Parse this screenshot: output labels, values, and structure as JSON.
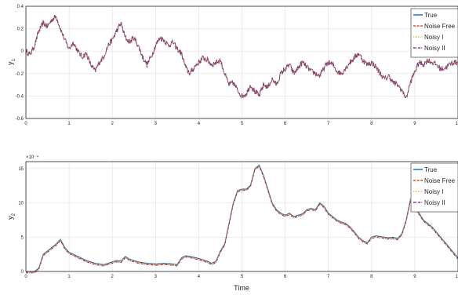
{
  "chart_data": [
    {
      "type": "line",
      "title": "",
      "ylabel": "y",
      "ylabel_sub": "1",
      "xlabel": "",
      "xlim": [
        0,
        10
      ],
      "ylim": [
        -0.6,
        0.4
      ],
      "xticks": [
        0,
        1,
        2,
        3,
        4,
        5,
        6,
        7,
        8,
        9,
        10
      ],
      "yticks": [
        -0.6,
        -0.4,
        -0.2,
        0,
        0.2,
        0.4
      ],
      "ytick_labels": [
        "-0.6",
        "-0.4",
        "-0.2",
        "0",
        "0.2",
        "0.4"
      ],
      "grid": true,
      "legend_position": "top-right",
      "noise": 0.025,
      "series": [
        {
          "name": "True",
          "color": "#0072BD",
          "style": "solid"
        },
        {
          "name": "Noise Free",
          "color": "#D95319",
          "style": "dashed"
        },
        {
          "name": "Noisy I",
          "color": "#EDB120",
          "style": "dotted"
        },
        {
          "name": "Noisy II",
          "color": "#7E2F8E",
          "style": "dashdot"
        }
      ],
      "x": [
        0,
        0.1,
        0.2,
        0.3,
        0.4,
        0.5,
        0.6,
        0.7,
        0.8,
        0.9,
        1.0,
        1.1,
        1.2,
        1.3,
        1.4,
        1.5,
        1.6,
        1.7,
        1.8,
        1.9,
        2.0,
        2.1,
        2.2,
        2.3,
        2.4,
        2.5,
        2.6,
        2.7,
        2.8,
        2.9,
        3.0,
        3.1,
        3.2,
        3.3,
        3.4,
        3.5,
        3.6,
        3.7,
        3.8,
        3.9,
        4.0,
        4.1,
        4.2,
        4.3,
        4.4,
        4.5,
        4.6,
        4.7,
        4.8,
        4.9,
        5.0,
        5.1,
        5.2,
        5.3,
        5.4,
        5.5,
        5.6,
        5.7,
        5.8,
        5.9,
        6.0,
        6.1,
        6.2,
        6.3,
        6.4,
        6.5,
        6.6,
        6.7,
        6.8,
        6.9,
        7.0,
        7.1,
        7.2,
        7.3,
        7.4,
        7.5,
        7.6,
        7.7,
        7.8,
        7.9,
        8.0,
        8.1,
        8.2,
        8.3,
        8.4,
        8.5,
        8.6,
        8.7,
        8.8,
        8.9,
        9.0,
        9.1,
        9.2,
        9.3,
        9.4,
        9.5,
        9.6,
        9.7,
        9.8,
        9.9,
        10.0
      ],
      "y": [
        0.0,
        -0.03,
        0.05,
        0.18,
        0.25,
        0.22,
        0.28,
        0.31,
        0.2,
        0.1,
        0.02,
        0.08,
        0.0,
        -0.05,
        -0.02,
        -0.12,
        -0.18,
        -0.1,
        -0.05,
        0.05,
        0.1,
        0.18,
        0.25,
        0.12,
        0.08,
        0.12,
        0.05,
        -0.05,
        -0.12,
        -0.05,
        0.05,
        0.12,
        0.1,
        0.05,
        0.08,
        0.02,
        -0.02,
        -0.15,
        -0.2,
        -0.14,
        -0.1,
        -0.06,
        -0.08,
        -0.12,
        -0.1,
        -0.08,
        -0.2,
        -0.3,
        -0.28,
        -0.35,
        -0.4,
        -0.38,
        -0.3,
        -0.36,
        -0.4,
        -0.3,
        -0.32,
        -0.25,
        -0.3,
        -0.2,
        -0.16,
        -0.12,
        -0.2,
        -0.15,
        -0.1,
        -0.14,
        -0.18,
        -0.2,
        -0.22,
        -0.15,
        -0.1,
        -0.12,
        -0.18,
        -0.2,
        -0.15,
        -0.1,
        -0.06,
        -0.02,
        -0.08,
        -0.12,
        -0.1,
        -0.14,
        -0.2,
        -0.25,
        -0.22,
        -0.28,
        -0.3,
        -0.35,
        -0.42,
        -0.28,
        -0.18,
        -0.1,
        -0.12,
        -0.08,
        -0.1,
        -0.12,
        -0.16,
        -0.15,
        -0.12,
        -0.1,
        -0.1
      ]
    },
    {
      "type": "line",
      "title": "",
      "ylabel": "y",
      "ylabel_sub": "2",
      "xlabel": "Time",
      "xlim": [
        0,
        10
      ],
      "ylim": [
        0,
        0.0016
      ],
      "scale_exponent": "×10⁻⁴",
      "xticks": [
        0,
        1,
        2,
        3,
        4,
        5,
        6,
        7,
        8,
        9,
        10
      ],
      "yticks": [
        0,
        0.0005,
        0.001,
        0.0015
      ],
      "ytick_labels": [
        "0",
        "5",
        "10",
        "15"
      ],
      "grid": true,
      "legend_position": "top-right",
      "noise": 0,
      "series": [
        {
          "name": "True",
          "color": "#0072BD",
          "style": "solid"
        },
        {
          "name": "Noise Free",
          "color": "#D95319",
          "style": "dashed"
        },
        {
          "name": "Noisy I",
          "color": "#EDB120",
          "style": "dotted"
        },
        {
          "name": "Noisy II",
          "color": "#7E2F8E",
          "style": "dashdot"
        }
      ],
      "x": [
        0,
        0.2,
        0.3,
        0.4,
        0.5,
        0.6,
        0.7,
        0.8,
        0.9,
        1.0,
        1.2,
        1.4,
        1.6,
        1.8,
        2.0,
        2.1,
        2.2,
        2.3,
        2.4,
        2.6,
        2.8,
        3.0,
        3.2,
        3.4,
        3.5,
        3.6,
        3.7,
        3.8,
        4.0,
        4.2,
        4.3,
        4.4,
        4.5,
        4.6,
        4.7,
        4.8,
        4.9,
        5.0,
        5.1,
        5.2,
        5.3,
        5.4,
        5.5,
        5.6,
        5.7,
        5.8,
        5.9,
        6.0,
        6.1,
        6.2,
        6.3,
        6.4,
        6.5,
        6.6,
        6.7,
        6.8,
        6.9,
        7.0,
        7.1,
        7.2,
        7.3,
        7.4,
        7.5,
        7.6,
        7.7,
        7.8,
        7.9,
        8.0,
        8.1,
        8.2,
        8.3,
        8.4,
        8.5,
        8.6,
        8.7,
        8.8,
        8.9,
        9.0,
        9.2,
        9.4,
        9.6,
        9.8,
        10.0
      ],
      "y": [
        0,
        0,
        5e-05,
        0.00025,
        0.0003,
        0.00035,
        0.0004,
        0.00047,
        0.00035,
        0.00028,
        0.00022,
        0.00016,
        0.00012,
        0.0001,
        0.00014,
        0.00016,
        0.00015,
        0.00022,
        0.00018,
        0.00014,
        0.00012,
        0.00011,
        0.00012,
        0.00011,
        0.0001,
        0.0002,
        0.00023,
        0.00022,
        0.00019,
        0.00015,
        0.00012,
        0.00015,
        0.0003,
        0.0004,
        0.0007,
        0.001,
        0.00118,
        0.0012,
        0.0012,
        0.00126,
        0.0015,
        0.00155,
        0.0014,
        0.0012,
        0.001,
        0.0009,
        0.00085,
        0.00082,
        0.00085,
        0.0008,
        0.00082,
        0.00084,
        0.0009,
        0.00092,
        0.0009,
        0.001,
        0.00095,
        0.00085,
        0.0008,
        0.00075,
        0.00072,
        0.0007,
        0.00065,
        0.00058,
        0.0005,
        0.00045,
        0.00042,
        0.0005,
        0.00052,
        0.00051,
        0.0005,
        0.00049,
        0.0005,
        0.00048,
        0.00055,
        0.00075,
        0.00105,
        0.00095,
        0.00075,
        0.00065,
        0.0005,
        0.00035,
        0.0002
      ]
    }
  ]
}
